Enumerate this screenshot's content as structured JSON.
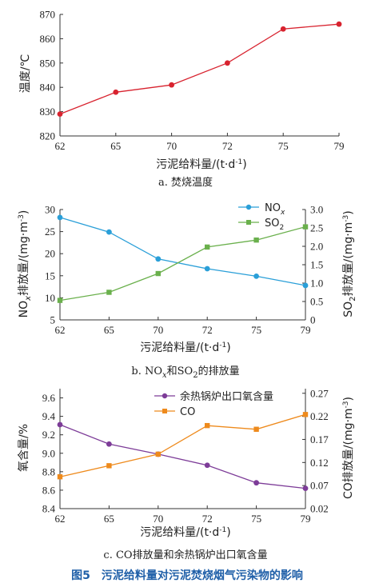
{
  "chart_data": [
    {
      "type": "line",
      "caption": "a. 焚烧温度",
      "xlabel": "污泥给料量/(t·d⁻¹)",
      "ylabel": "温度/℃",
      "categories": [
        "62",
        "65",
        "70",
        "72",
        "75",
        "79"
      ],
      "ylim": [
        820,
        870
      ],
      "yticks": [
        820,
        830,
        840,
        850,
        860,
        870
      ],
      "grid": false,
      "series": [
        {
          "name": "",
          "axis": "left",
          "color": "#d8232f",
          "marker": "circle",
          "values": [
            829,
            838,
            841,
            850,
            864,
            866
          ]
        }
      ]
    },
    {
      "type": "line",
      "caption": "b. NOx和SO2的排放量",
      "xlabel": "污泥给料量/(t·d⁻¹)",
      "ylabel": "NOx排放量/(mg·m⁻³)",
      "y2label": "SO2排放量/(mg·m⁻³)",
      "categories": [
        "62",
        "65",
        "70",
        "72",
        "75",
        "79"
      ],
      "ylim": [
        5,
        30
      ],
      "yticks": [
        5,
        10,
        15,
        20,
        25,
        30
      ],
      "y2lim": [
        0,
        3
      ],
      "y2ticks": [
        "0",
        "0.5",
        "1.0",
        "1.5",
        "2.0",
        "2.5",
        "3.0"
      ],
      "grid": false,
      "legend": "top-right",
      "series": [
        {
          "name": "NOx",
          "axis": "left",
          "color": "#2a9fd8",
          "marker": "circle",
          "values": [
            28.2,
            24.9,
            18.8,
            16.6,
            14.9,
            12.8
          ]
        },
        {
          "name": "SO2",
          "axis": "right",
          "color": "#6ab04c",
          "marker": "square",
          "values": [
            0.53,
            0.75,
            1.26,
            1.98,
            2.17,
            2.53
          ]
        }
      ]
    },
    {
      "type": "line",
      "caption": "c. CO排放量和余热锅炉出口氧含量",
      "xlabel": "污泥给料量/(t·d⁻¹)",
      "ylabel": "氧含量/%",
      "y2label": "CO排放量/(mg·m⁻³)",
      "categories": [
        "62",
        "65",
        "70",
        "72",
        "75",
        "79"
      ],
      "ylim": [
        8.4,
        9.7
      ],
      "yticks": [
        "8.4",
        "8.6",
        "8.8",
        "9.0",
        "9.2",
        "9.4",
        "9.6"
      ],
      "y2lim": [
        0.02,
        0.28
      ],
      "y2ticks": [
        "0.02",
        "0.07",
        "0.12",
        "0.17",
        "0.22",
        "0.27"
      ],
      "grid": false,
      "legend": "top-right",
      "series": [
        {
          "name": "余热锅炉出口氧含量",
          "axis": "left",
          "color": "#7d3c98",
          "marker": "circle",
          "values": [
            9.31,
            9.1,
            8.99,
            8.87,
            8.68,
            8.62
          ]
        },
        {
          "name": "CO",
          "axis": "right",
          "color": "#ee8a1c",
          "marker": "square",
          "values": [
            0.089,
            0.113,
            0.138,
            0.2,
            0.192,
            0.224
          ]
        }
      ]
    }
  ],
  "figure_caption": "图5　污泥给料量对污泥焚烧烟气污染物的影响"
}
